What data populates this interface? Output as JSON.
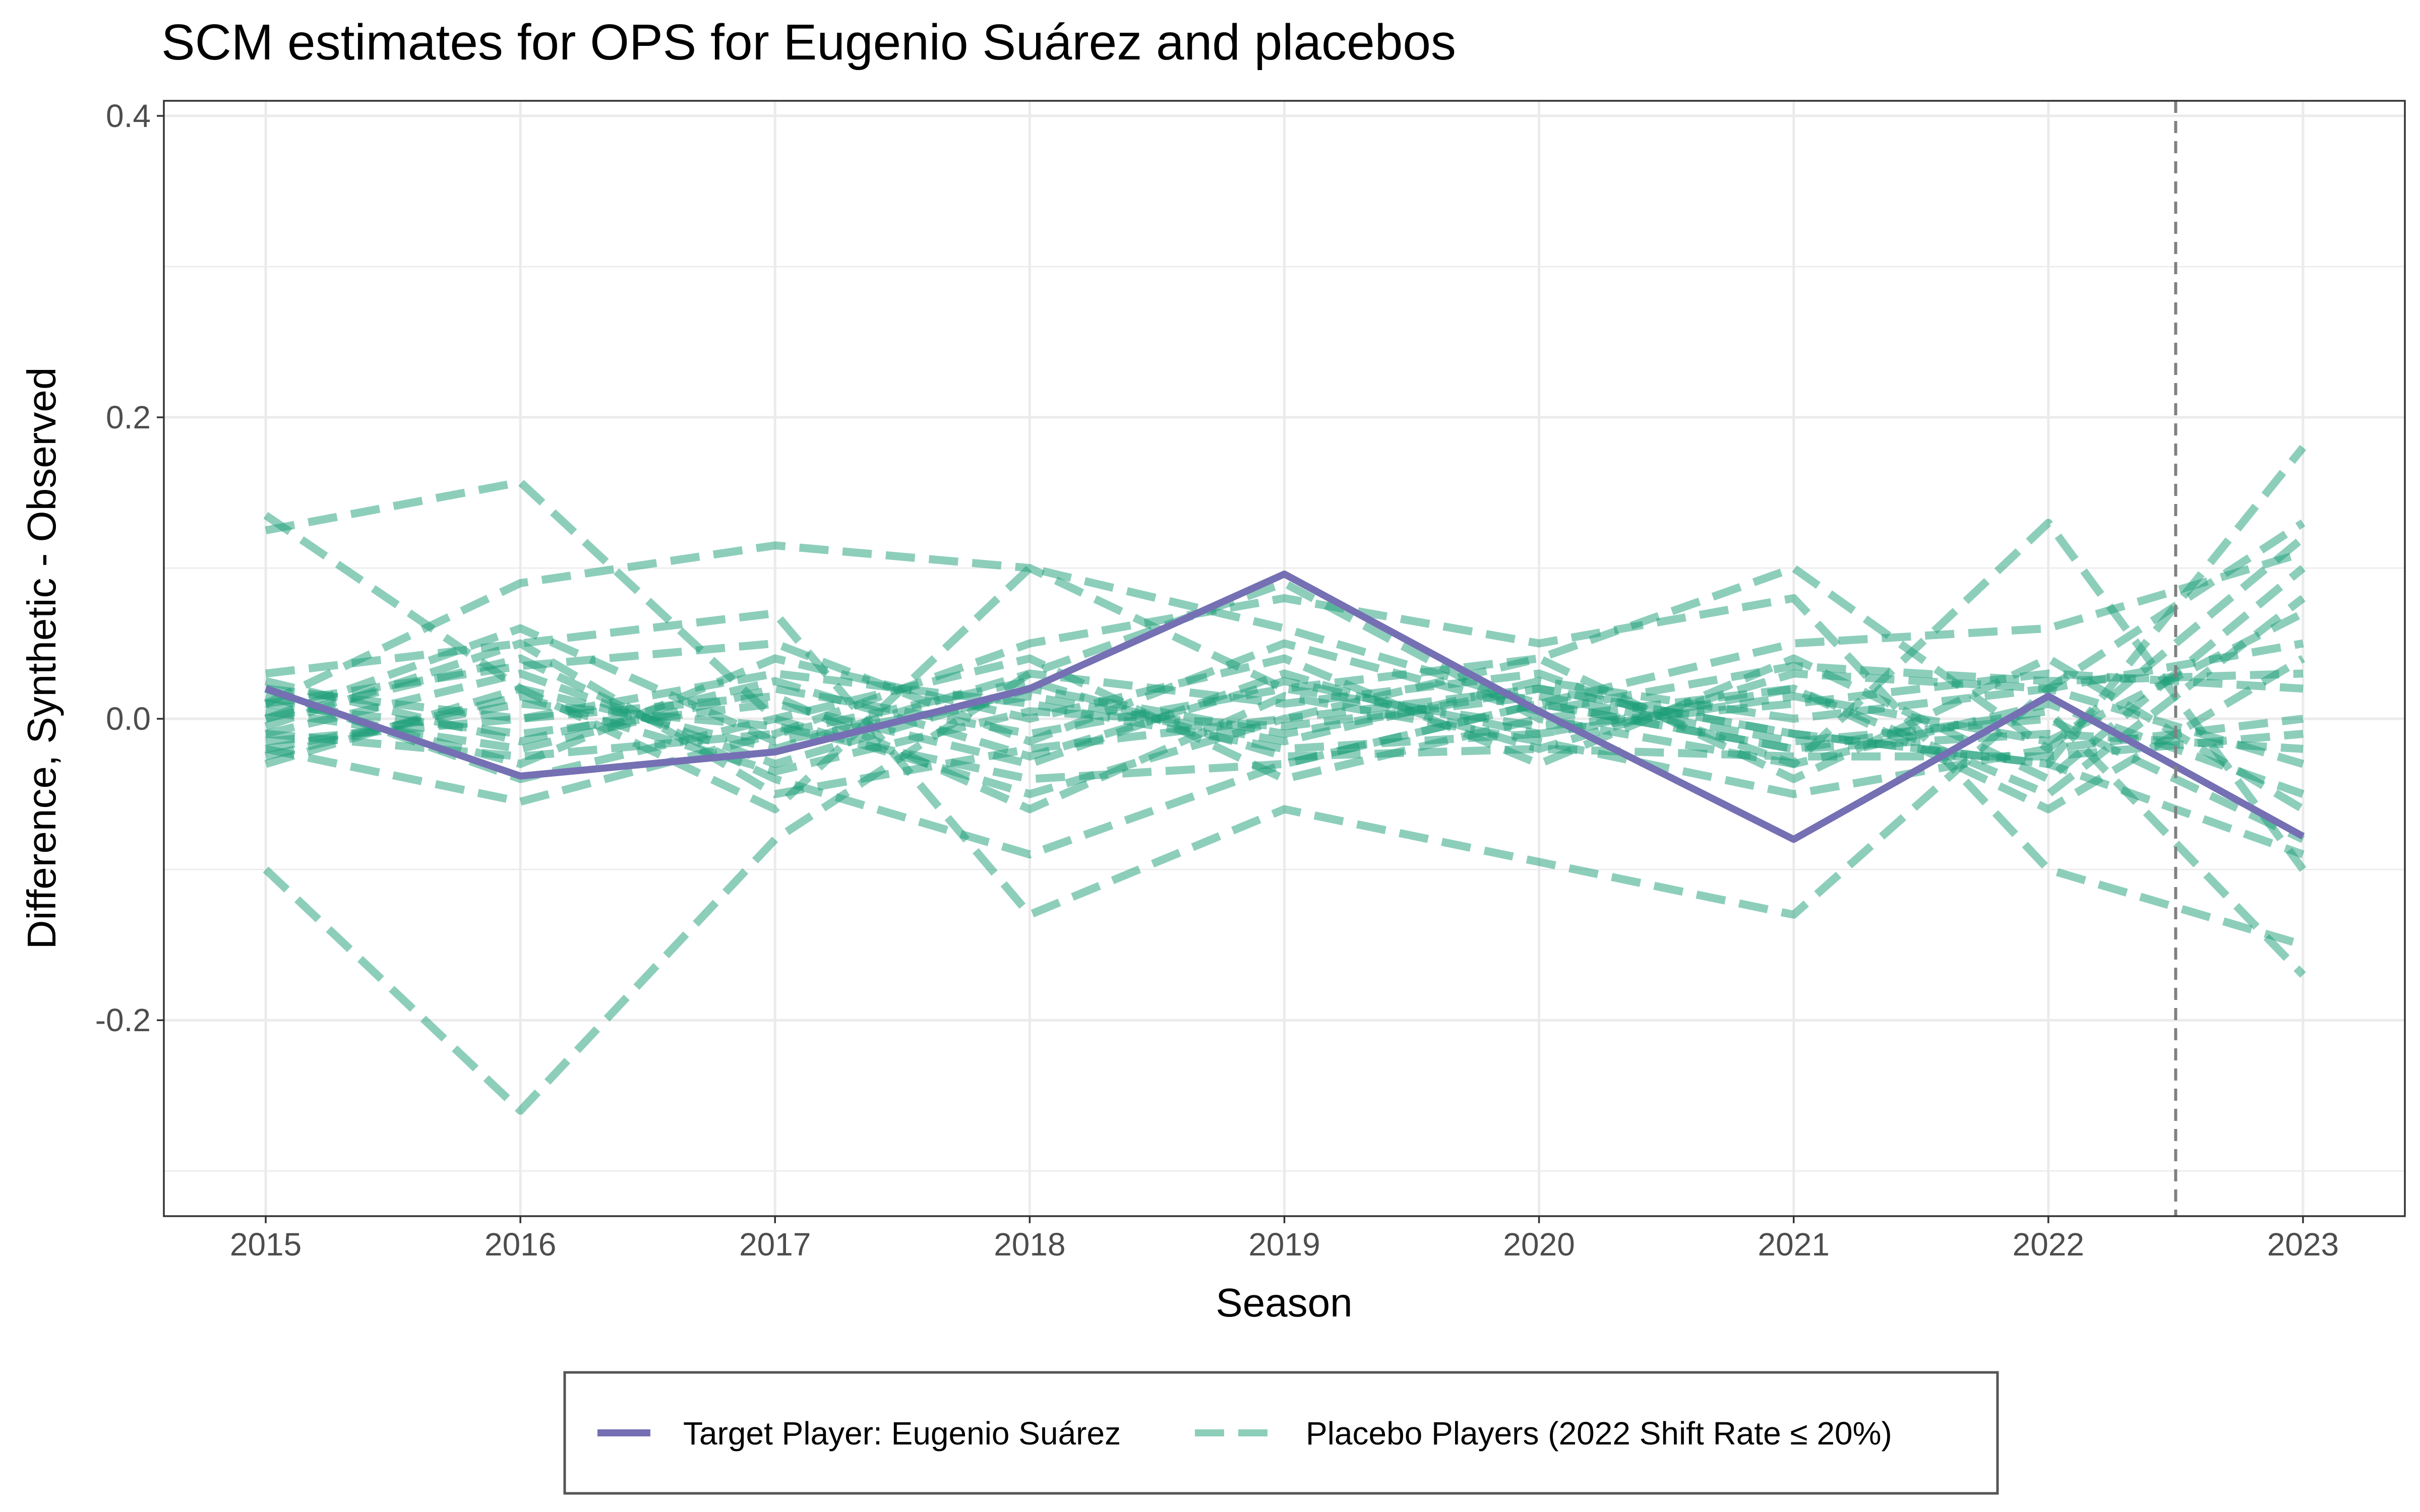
{
  "chart_data": {
    "type": "line",
    "title": "SCM estimates for OPS for Eugenio Suárez and placebos",
    "xlabel": "Season",
    "ylabel": "Difference, Synthetic - Observed",
    "x": [
      2015,
      2016,
      2017,
      2018,
      2019,
      2020,
      2021,
      2022,
      2023
    ],
    "x_tick_labels": [
      "2015",
      "2016",
      "2017",
      "2018",
      "2019",
      "2020",
      "2021",
      "2022",
      "2023"
    ],
    "xlim": [
      2014.6,
      2023.4
    ],
    "ylim": [
      -0.33,
      0.41
    ],
    "y_ticks": [
      -0.2,
      0.0,
      0.2,
      0.4
    ],
    "y_tick_labels": [
      "-0.2",
      "0.0",
      "0.2",
      "0.4"
    ],
    "grid": true,
    "reference_line": {
      "x": 2022.5,
      "style": "dashed",
      "color": "#808080"
    },
    "legend_position": "bottom",
    "colors": {
      "target": "#7570b3",
      "placebo": "#1b9e77"
    },
    "target": {
      "name": "Target Player: Eugenio Suárez",
      "values": [
        0.02,
        -0.038,
        -0.022,
        0.02,
        0.096,
        0.005,
        -0.08,
        0.015,
        -0.078
      ]
    },
    "placebos": {
      "name": "Placebo Players (2022 Shift Rate ≤ 20%)",
      "series": [
        {
          "values": [
            0.125,
            0.157,
            0.0,
            -0.05,
            0.0,
            0.02,
            -0.01,
            -0.03,
            0.18
          ]
        },
        {
          "values": [
            0.135,
            0.02,
            -0.06,
            0.1,
            0.06,
            0.01,
            -0.02,
            0.005,
            -0.17
          ]
        },
        {
          "values": [
            -0.1,
            -0.26,
            -0.08,
            0.03,
            0.09,
            0.0,
            -0.03,
            0.13,
            -0.1
          ]
        },
        {
          "values": [
            0.01,
            0.09,
            0.115,
            0.1,
            0.02,
            0.04,
            0.1,
            -0.02,
            0.12
          ]
        },
        {
          "values": [
            0.03,
            0.05,
            0.07,
            -0.13,
            -0.06,
            -0.095,
            -0.13,
            0.02,
            0.13
          ]
        },
        {
          "values": [
            -0.02,
            -0.055,
            -0.01,
            0.05,
            0.08,
            0.05,
            0.08,
            -0.1,
            -0.15
          ]
        },
        {
          "values": [
            0.0,
            0.04,
            -0.04,
            -0.09,
            -0.03,
            0.01,
            0.05,
            0.06,
            0.11
          ]
        },
        {
          "values": [
            0.02,
            0.0,
            0.03,
            0.01,
            -0.02,
            -0.01,
            0.02,
            -0.05,
            0.08
          ]
        },
        {
          "values": [
            -0.03,
            0.02,
            -0.02,
            0.03,
            0.01,
            0.03,
            -0.03,
            0.01,
            -0.05
          ]
        },
        {
          "values": [
            0.01,
            -0.01,
            0.01,
            -0.03,
            0.03,
            -0.02,
            0.03,
            0.02,
            0.05
          ]
        },
        {
          "values": [
            -0.01,
            0.03,
            -0.03,
            0.02,
            -0.01,
            0.02,
            -0.01,
            -0.03,
            -0.09
          ]
        },
        {
          "values": [
            0.005,
            -0.02,
            0.02,
            -0.01,
            0.02,
            -0.005,
            0.01,
            0.03,
            0.02
          ]
        },
        {
          "values": [
            -0.02,
            0.01,
            -0.005,
            -0.04,
            -0.03,
            0.01,
            -0.02,
            -0.01,
            -0.02
          ]
        },
        {
          "values": [
            0.015,
            -0.03,
            0.04,
            0.0,
            0.04,
            -0.03,
            0.04,
            -0.04,
            0.1
          ]
        },
        {
          "values": [
            -0.005,
            0.05,
            -0.05,
            -0.02,
            0.0,
            0.04,
            -0.04,
            0.04,
            -0.06
          ]
        },
        {
          "values": [
            0.02,
            -0.04,
            0.0,
            0.04,
            -0.04,
            0.0,
            0.02,
            -0.06,
            0.04
          ]
        },
        {
          "values": [
            -0.015,
            0.0,
            0.015,
            -0.06,
            0.015,
            -0.015,
            -0.05,
            -0.02,
            0.0
          ]
        },
        {
          "values": [
            0.0,
            0.06,
            -0.015,
            0.015,
            -0.015,
            0.025,
            0.0,
            0.02,
            -0.03
          ]
        },
        {
          "values": [
            0.025,
            -0.015,
            0.025,
            -0.025,
            0.025,
            -0.01,
            0.015,
            -0.015,
            0.07
          ]
        },
        {
          "values": [
            -0.025,
            0.015,
            -0.035,
            0.005,
            -0.005,
            0.015,
            -0.015,
            0.0,
            -0.08
          ]
        },
        {
          "values": [
            0.01,
            0.035,
            0.05,
            -0.015,
            0.05,
            0.005,
            0.035,
            0.025,
            0.03
          ]
        },
        {
          "values": [
            -0.01,
            -0.025,
            -0.01,
            0.025,
            -0.025,
            -0.02,
            -0.025,
            -0.025,
            -0.01
          ]
        }
      ]
    }
  }
}
